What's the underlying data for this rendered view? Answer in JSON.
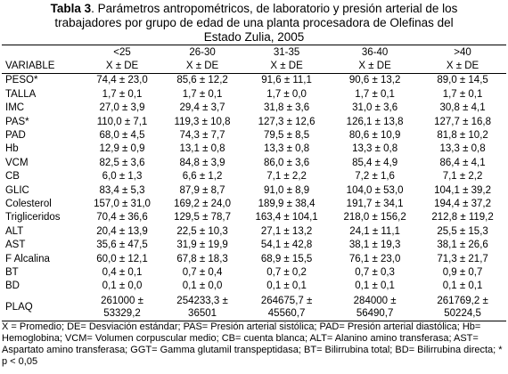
{
  "title": {
    "label": "Tabla 3",
    "text": ". Parámetros antropométricos, de laboratorio y presión arterial de los trabajadores por grupo de edad de una planta procesadora de Olefinas del Estado Zulia, 2005"
  },
  "table": {
    "variable_header": "VARIABLE",
    "groups": [
      "<25",
      "26-30",
      "31-35",
      "36-40",
      ">40"
    ],
    "stat_header": "X ± DE",
    "rows": [
      [
        "PESO*",
        "74,4 ± 23,0",
        "85,6 ± 12,2",
        "91,6 ± 11,1",
        "90,6 ± 13,2",
        "89,0 ± 14,5"
      ],
      [
        "TALLA",
        "1,7 ± 0,1",
        "1,7 ± 0,1",
        "1,7 ± 0,0",
        "1,7 ± 0,1",
        "1,7 ± 0,1"
      ],
      [
        "IMC",
        "27,0 ± 3,9",
        "29,4 ± 3,7",
        "31,8 ± 3,6",
        "31,0 ± 3,6",
        "30,8 ± 4,1"
      ],
      [
        "PAS*",
        "110,0 ± 7,1",
        "119,3 ± 10,8",
        "127,3 ± 12,6",
        "126,1 ± 13,8",
        "127,7 ± 16,8"
      ],
      [
        "PAD",
        "68,0 ± 4,5",
        "74,3 ± 7,7",
        "79,5 ± 8,5",
        "80,6 ± 10,9",
        "81,8 ± 10,2"
      ],
      [
        "Hb",
        "12,9 ± 0,9",
        "13,1 ± 0,8",
        "13,3 ± 0,8",
        "13,3 ± 0,8",
        "13,3 ± 0,8"
      ],
      [
        "VCM",
        "82,5 ± 3,6",
        "84,8 ± 3,9",
        "86,0 ± 3,6",
        "85,4 ± 4,9",
        "86,4 ± 4,1"
      ],
      [
        "CB",
        "6,0 ± 1,3",
        "6,6 ± 1,2",
        "7,1 ± 2,2",
        "7,2 ± 1,6",
        "7,1 ± 2,2"
      ],
      [
        "GLIC",
        "83,4 ± 5,3",
        "87,9 ± 8,7",
        "91,0 ± 8,9",
        "104,0 ± 53,0",
        "104,1 ± 39,2"
      ],
      [
        "Colesterol",
        "157,0 ± 31,0",
        "169,2 ± 24,0",
        "189,9 ± 38,4",
        "191,7 ± 34,1",
        "194,4 ± 37,2"
      ],
      [
        "Trigliceridos",
        "70,4 ± 36,6",
        "129,5 ± 78,7",
        "163,4 ± 104,1",
        "218,0 ± 156,2",
        "212,8 ± 119,2"
      ],
      [
        "ALT",
        "20,4 ± 13,9",
        "22,5 ± 10,3",
        "27,1 ± 13,2",
        "24,1 ± 11,1",
        "25,5 ± 15,3"
      ],
      [
        "AST",
        "35,6 ± 47,5",
        "31,9 ± 19,9",
        "54,1 ± 42,8",
        "38,1 ± 19,3",
        "38,1 ± 26,6"
      ],
      [
        "F Alcalina",
        "60,0 ± 12,1",
        "67,8 ± 18,3",
        "68,9 ± 15,5",
        "76,1 ± 23,0",
        "71,3 ± 21,7"
      ],
      [
        "BT",
        "0,4 ± 0,1",
        "0,7 ± 0,4",
        "0,7 ± 0,2",
        "0,7 ± 0,3",
        "0,9 ± 0,7"
      ],
      [
        "BD",
        "0,1 ± 0,0",
        "0,1 ± 0,0",
        "0,1 ± 0,1",
        "0,1 ± 0,1",
        "0,1 ± 0,1"
      ],
      [
        "PLAQ",
        "261000 ± 53329,2",
        "254233,3 ± 36501",
        "264675,7 ± 45560,7",
        "284000 ± 56490,7",
        "261769,2 ± 50224,5"
      ]
    ]
  },
  "footnote": "X = Promedio; DE= Desviación estándar; PAS= Presión arterial sistólica; PAD= Presión arterial diastólica; Hb= Hemoglobina; VCM= Volumen corpuscular medio; CB= cuenta blanca; ALT= Alanino amino transferasa; AST= Aspartato amino transferasa; GGT= Gamma glutamil transpeptidasa; BT= Bilirrubina total; BD= Bilirrubina directa; * p < 0,05"
}
